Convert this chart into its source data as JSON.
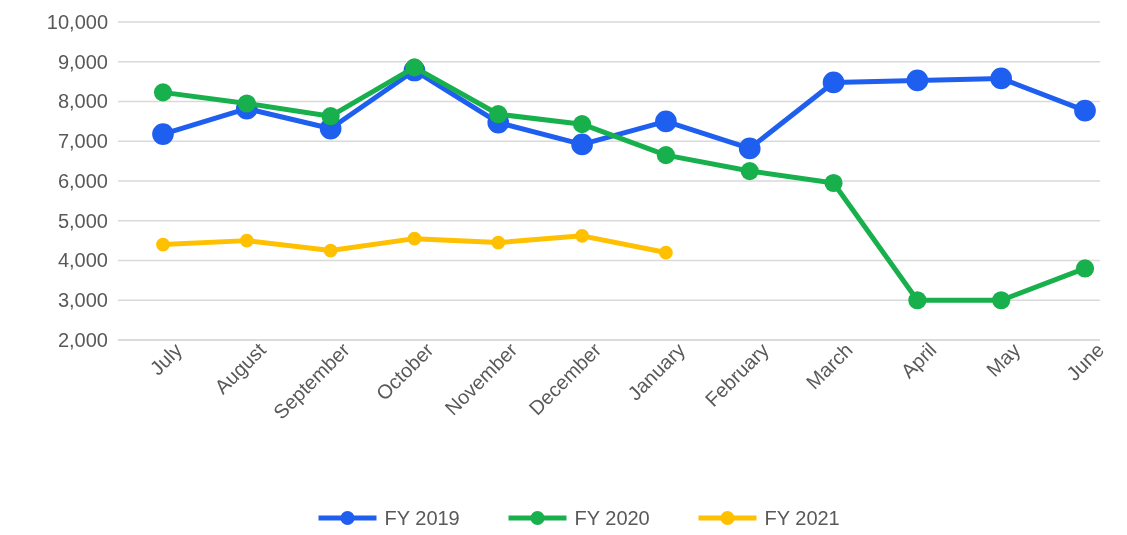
{
  "chart_data": {
    "type": "line",
    "categories": [
      "July",
      "August",
      "September",
      "October",
      "November",
      "December",
      "January",
      "February",
      "March",
      "April",
      "May",
      "June"
    ],
    "series": [
      {
        "name": "FY 2019",
        "color": "#1f5ff0",
        "values": [
          7180,
          7820,
          7320,
          8780,
          7470,
          6920,
          7500,
          6820,
          8480,
          8530,
          8580,
          7770
        ]
      },
      {
        "name": "FY 2020",
        "color": "#18b04c",
        "values": [
          8230,
          7950,
          7630,
          8860,
          7680,
          7430,
          6650,
          6250,
          5950,
          3000,
          3000,
          3800
        ]
      },
      {
        "name": "FY 2021",
        "color": "#ffc000",
        "values": [
          4400,
          4500,
          4250,
          4550,
          4450,
          4620,
          4200,
          null,
          null,
          null,
          null,
          null
        ]
      }
    ],
    "ylim": [
      2000,
      10000
    ],
    "yticks": [
      {
        "value": 2000,
        "label": "2,000"
      },
      {
        "value": 3000,
        "label": "3,000"
      },
      {
        "value": 4000,
        "label": "4,000"
      },
      {
        "value": 5000,
        "label": "5,000"
      },
      {
        "value": 6000,
        "label": "6,000"
      },
      {
        "value": 7000,
        "label": "7,000"
      },
      {
        "value": 8000,
        "label": "8,000"
      },
      {
        "value": 9000,
        "label": "9,000"
      },
      {
        "value": 10000,
        "label": "10,000"
      }
    ],
    "grid": "y",
    "legend": "bottom",
    "marker": "circle",
    "line_style": "solid"
  }
}
